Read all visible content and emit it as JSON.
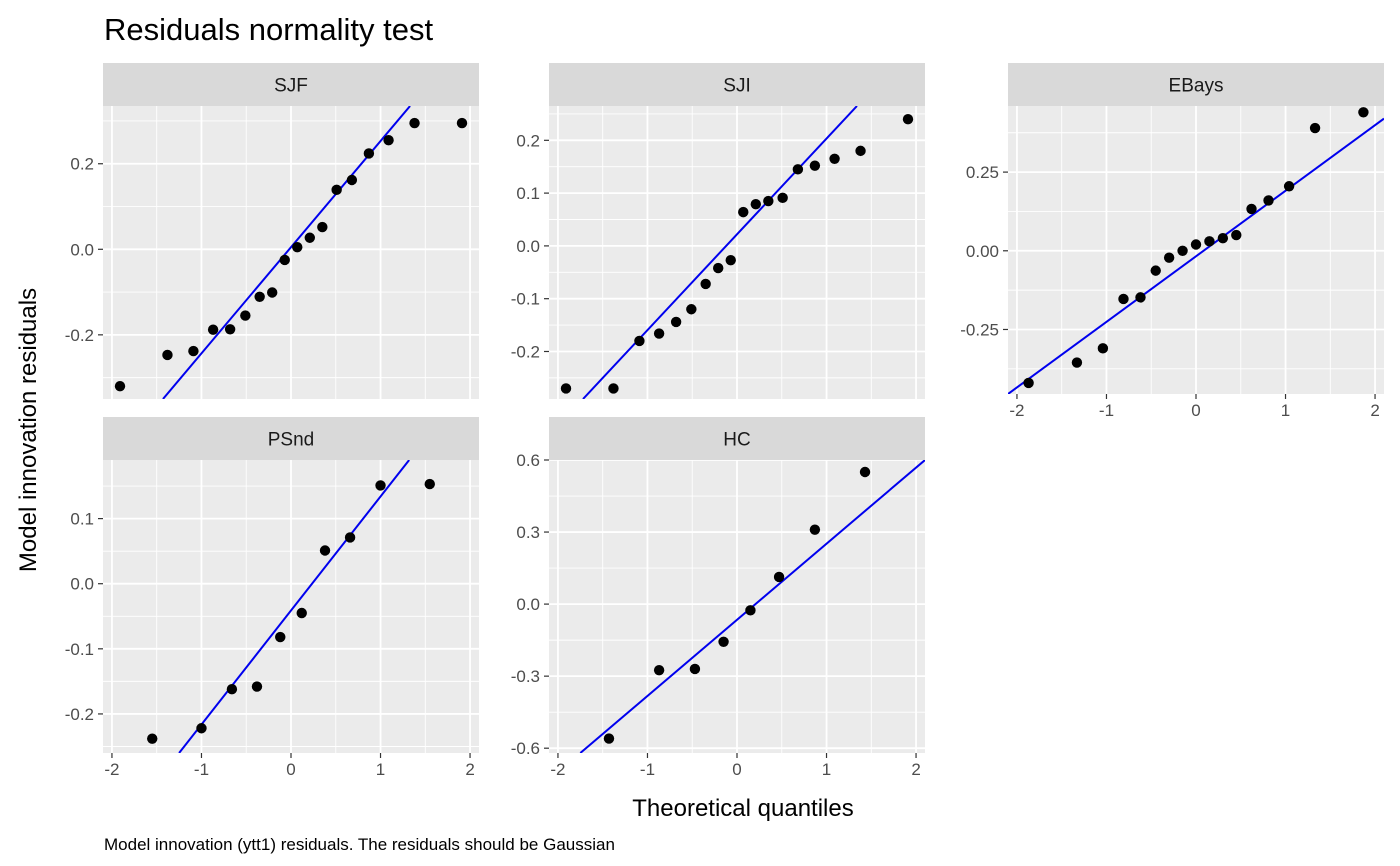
{
  "chart_data": {
    "type": "scatter",
    "title": "Residuals normality test",
    "xlabel": "Theoretical quantiles",
    "ylabel": "Model innovation residuals",
    "caption": "Model innovation (ytt1) residuals. The residuals should be Gaussian",
    "point_color": "#000000",
    "line_color": "#0000ee",
    "panel_background": "#ebebeb",
    "strip_background": "#d9d9d9",
    "grid": true,
    "panels": [
      {
        "name": "SJF",
        "xlim": [
          -2.1,
          2.1
        ],
        "ylim": [
          -0.35,
          0.335
        ],
        "x_ticks": [
          -2,
          -1,
          0,
          1,
          2
        ],
        "y_ticks": [
          -0.2,
          0.0,
          0.2
        ],
        "y_tick_labels": [
          "-0.2",
          "0.0",
          "0.2"
        ],
        "show_x_axis": false,
        "points": [
          [
            -1.91,
            -0.32
          ],
          [
            -1.38,
            -0.247
          ],
          [
            -1.09,
            -0.238
          ],
          [
            -0.87,
            -0.188
          ],
          [
            -0.68,
            -0.187
          ],
          [
            -0.51,
            -0.155
          ],
          [
            -0.35,
            -0.111
          ],
          [
            -0.21,
            -0.101
          ],
          [
            -0.07,
            -0.025
          ],
          [
            0.07,
            0.005
          ],
          [
            0.21,
            0.027
          ],
          [
            0.35,
            0.052
          ],
          [
            0.51,
            0.139
          ],
          [
            0.68,
            0.162
          ],
          [
            0.87,
            0.224
          ],
          [
            1.09,
            0.255
          ],
          [
            1.38,
            0.295
          ],
          [
            1.91,
            0.295
          ]
        ],
        "line": [
          [
            -1.43,
            -0.35
          ],
          [
            1.33,
            0.335
          ]
        ]
      },
      {
        "name": "SJI",
        "xlim": [
          -2.1,
          2.1
        ],
        "ylim": [
          -0.29,
          0.265
        ],
        "x_ticks": [
          -2,
          -1,
          0,
          1,
          2
        ],
        "y_ticks": [
          -0.2,
          -0.1,
          0.0,
          0.1,
          0.2
        ],
        "y_tick_labels": [
          "-0.2",
          "-0.1",
          "0.0",
          "0.1",
          "0.2"
        ],
        "show_x_axis": false,
        "points": [
          [
            -1.91,
            -0.27
          ],
          [
            -1.38,
            -0.27
          ],
          [
            -1.09,
            -0.18
          ],
          [
            -0.87,
            -0.166
          ],
          [
            -0.68,
            -0.144
          ],
          [
            -0.51,
            -0.12
          ],
          [
            -0.35,
            -0.072
          ],
          [
            -0.21,
            -0.042
          ],
          [
            -0.07,
            -0.027
          ],
          [
            0.07,
            0.064
          ],
          [
            0.21,
            0.079
          ],
          [
            0.35,
            0.085
          ],
          [
            0.51,
            0.091
          ],
          [
            0.68,
            0.145
          ],
          [
            0.87,
            0.152
          ],
          [
            1.09,
            0.165
          ],
          [
            1.38,
            0.18
          ],
          [
            1.91,
            0.24
          ]
        ],
        "line": [
          [
            -1.72,
            -0.29
          ],
          [
            1.34,
            0.265
          ]
        ]
      },
      {
        "name": "EBays",
        "xlim": [
          -2.1,
          2.1
        ],
        "ylim": [
          -0.455,
          0.46
        ],
        "x_ticks": [
          -2,
          -1,
          0,
          1,
          2
        ],
        "y_ticks": [
          -0.25,
          0.0,
          0.25
        ],
        "y_tick_labels": [
          "-0.25",
          "0.00",
          "0.25"
        ],
        "show_x_axis": true,
        "points": [
          [
            -1.87,
            -0.42
          ],
          [
            -1.33,
            -0.355
          ],
          [
            -1.04,
            -0.31
          ],
          [
            -0.81,
            -0.153
          ],
          [
            -0.62,
            -0.148
          ],
          [
            -0.45,
            -0.063
          ],
          [
            -0.3,
            -0.022
          ],
          [
            -0.15,
            0.0
          ],
          [
            0.0,
            0.02
          ],
          [
            0.15,
            0.03
          ],
          [
            0.3,
            0.04
          ],
          [
            0.45,
            0.05
          ],
          [
            0.62,
            0.133
          ],
          [
            0.81,
            0.16
          ],
          [
            1.04,
            0.205
          ],
          [
            1.33,
            0.39
          ],
          [
            1.87,
            0.44
          ]
        ],
        "line": [
          [
            -2.1,
            -0.455
          ],
          [
            2.1,
            0.42
          ]
        ]
      },
      {
        "name": "PSnd",
        "xlim": [
          -2.1,
          2.1
        ],
        "ylim": [
          -0.26,
          0.19
        ],
        "x_ticks": [
          -2,
          -1,
          0,
          1,
          2
        ],
        "y_ticks": [
          -0.2,
          -0.1,
          0.0,
          0.1
        ],
        "y_tick_labels": [
          "-0.2",
          "-0.1",
          "0.0",
          "0.1"
        ],
        "show_x_axis": true,
        "points": [
          [
            -1.55,
            -0.238
          ],
          [
            -1.0,
            -0.222
          ],
          [
            -0.66,
            -0.162
          ],
          [
            -0.38,
            -0.158
          ],
          [
            -0.12,
            -0.082
          ],
          [
            0.12,
            -0.045
          ],
          [
            0.38,
            0.051
          ],
          [
            0.66,
            0.071
          ],
          [
            1.0,
            0.151
          ],
          [
            1.55,
            0.153
          ]
        ],
        "line": [
          [
            -1.25,
            -0.26
          ],
          [
            1.32,
            0.19
          ]
        ]
      },
      {
        "name": "HC",
        "xlim": [
          -2.1,
          2.1
        ],
        "ylim": [
          -0.62,
          0.6
        ],
        "x_ticks": [
          -2,
          -1,
          0,
          1,
          2
        ],
        "y_ticks": [
          -0.6,
          -0.3,
          0.0,
          0.3,
          0.6
        ],
        "y_tick_labels": [
          "-0.6",
          "-0.3",
          "0.0",
          "0.3",
          "0.6"
        ],
        "show_x_axis": true,
        "points": [
          [
            -1.43,
            -0.56
          ],
          [
            -0.87,
            -0.275
          ],
          [
            -0.47,
            -0.27
          ],
          [
            -0.15,
            -0.157
          ],
          [
            0.15,
            -0.026
          ],
          [
            0.47,
            0.113
          ],
          [
            0.87,
            0.31
          ],
          [
            1.43,
            0.55
          ]
        ],
        "line": [
          [
            -1.75,
            -0.62
          ],
          [
            2.1,
            0.6
          ]
        ]
      }
    ]
  }
}
